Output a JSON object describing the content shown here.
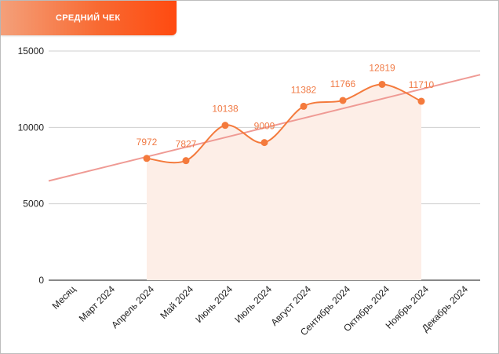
{
  "header": {
    "title": "СРЕДНИЙ ЧЕК"
  },
  "colors": {
    "series": "#f47a3c",
    "area": "#fdeee7",
    "trend": "#ef9a94",
    "grid": "#cfcfcf",
    "labels": "#f07a45"
  },
  "chart_data": {
    "type": "line",
    "title": "СРЕДНИЙ ЧЕК",
    "xlabel": "",
    "ylabel": "",
    "categories": [
      "Месяц",
      "Март 2024",
      "Апрель 2024",
      "Май 2024",
      "Июнь 2024",
      "Июль 2024",
      "Август 2024",
      "Сентябрь 2024",
      "Октябрь 2024",
      "Ноябрь 2024",
      "Декабрь 2024"
    ],
    "series": [
      {
        "values": [
          null,
          null,
          7972,
          7827,
          10138,
          9009,
          11382,
          11766,
          12819,
          11710,
          null
        ],
        "labels": [
          "",
          "",
          "7972",
          "7827",
          "10138",
          "9009",
          "11382",
          "11766",
          "12819",
          "11710",
          ""
        ],
        "smooth": true,
        "area_fill": true
      }
    ],
    "trendline": {
      "type": "linear",
      "start_value": 6500,
      "end_value": 13450
    },
    "ylim": [
      0,
      15000
    ],
    "yticks": [
      0,
      5000,
      10000,
      15000
    ],
    "grid": true,
    "legend": "none"
  }
}
